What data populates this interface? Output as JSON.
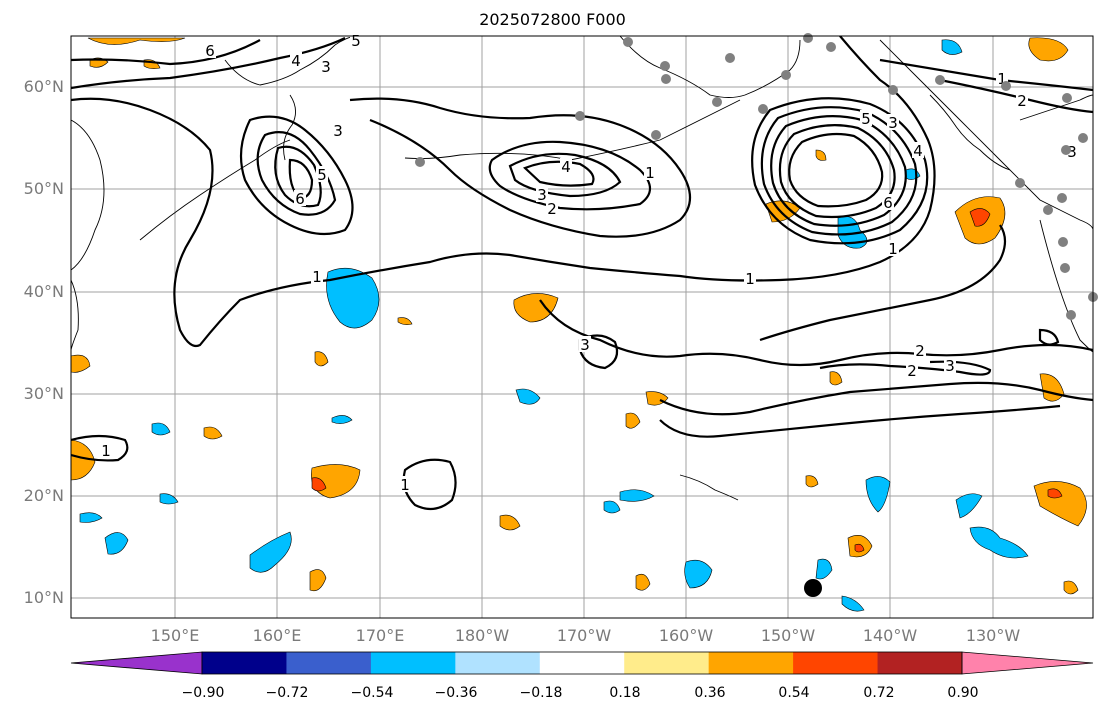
{
  "title": "2025072800 F000",
  "lat_labels": [
    "60°N",
    "50°N",
    "40°N",
    "30°N",
    "20°N",
    "10°N"
  ],
  "lon_labels": [
    "150°E",
    "160°E",
    "170°E",
    "180°W",
    "170°W",
    "160°W",
    "150°W",
    "140°W",
    "130°W"
  ],
  "colorbar": {
    "ticks": [
      "−0.90",
      "−0.72",
      "−0.54",
      "−0.36",
      "−0.18",
      "0.18",
      "0.36",
      "0.54",
      "0.72",
      "0.90"
    ],
    "colors": [
      "#9932cc",
      "#00008b",
      "#3a5fcd",
      "#00bfff",
      "#b0e2ff",
      "#ffffff",
      "#ffec8b",
      "#ffa500",
      "#ff4500",
      "#b22222",
      "#ff82ab"
    ]
  },
  "contour_labels": [
    "6",
    "5",
    "4",
    "3",
    "3",
    "5",
    "6",
    "4",
    "3",
    "2",
    "1",
    "1",
    "1",
    "5",
    "3",
    "4",
    "6",
    "1",
    "2",
    "3",
    "1",
    "2",
    "2",
    "3",
    "3",
    "1",
    "1"
  ],
  "colors": {
    "contour": "#000000",
    "grid": "#a0a0a0",
    "land": "#000000",
    "marker_gray": "#808080"
  }
}
